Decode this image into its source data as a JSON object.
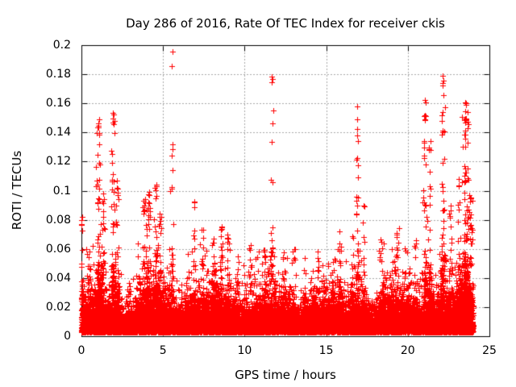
{
  "chart_data": {
    "type": "scatter",
    "title": "Day 286 of 2016, Rate Of TEC Index for receiver ckis",
    "xlabel": "GPS time / hours",
    "ylabel": "ROTI / TECUs",
    "xlim": [
      0,
      25
    ],
    "ylim": [
      0,
      0.2
    ],
    "grid": true,
    "legend": "none",
    "marker": "plus",
    "marker_size_px": 7,
    "marker_color": "#ff0000",
    "grid_color": "#a8a8a8",
    "axis_color": "#000000",
    "xticks": {
      "values": [
        0,
        5,
        10,
        15,
        20,
        25
      ],
      "labels": [
        "0",
        "5",
        "10",
        "15",
        "20",
        "25"
      ]
    },
    "yticks": {
      "values": [
        0,
        0.02,
        0.04,
        0.06,
        0.08,
        0.1,
        0.12,
        0.14,
        0.16,
        0.18,
        0.2
      ],
      "labels": [
        "0",
        "0.02",
        "0.04",
        "0.06",
        "0.08",
        "0.1",
        "0.12",
        "0.14",
        "0.16",
        "0.18",
        "0.2"
      ]
    },
    "data_time_range_hours": [
      0,
      24
    ],
    "baseline": {
      "n_points": 17000,
      "roti_floor": 0.002,
      "typical_roti_max": 0.03,
      "ragged_excursions_to": 0.06,
      "description": "continuous dense band of + markers across 0-24 h, solid below ~0.02, ragged tops to ~0.04-0.06"
    },
    "spike_clusters": [
      {
        "t_hours": 0.03,
        "peak_roti": 0.088,
        "n_points": 16,
        "sigma_hours": 0.03
      },
      {
        "t_hours": 0.35,
        "peak_roti": 0.062,
        "n_points": 14,
        "sigma_hours": 0.05
      },
      {
        "t_hours": 1.05,
        "peak_roti": 0.152,
        "n_points": 55,
        "sigma_hours": 0.09
      },
      {
        "t_hours": 1.35,
        "peak_roti": 0.1,
        "n_points": 25,
        "sigma_hours": 0.06
      },
      {
        "t_hours": 1.95,
        "peak_roti": 0.158,
        "n_points": 40,
        "sigma_hours": 0.07
      },
      {
        "t_hours": 2.2,
        "peak_roti": 0.112,
        "n_points": 22,
        "sigma_hours": 0.05
      },
      {
        "t_hours": 3.85,
        "peak_roti": 0.095,
        "n_points": 40,
        "sigma_hours": 0.1
      },
      {
        "t_hours": 4.15,
        "peak_roti": 0.1,
        "n_points": 30,
        "sigma_hours": 0.07
      },
      {
        "t_hours": 4.55,
        "peak_roti": 0.105,
        "n_points": 40,
        "sigma_hours": 0.09
      },
      {
        "t_hours": 4.8,
        "peak_roti": 0.088,
        "n_points": 25,
        "sigma_hours": 0.06
      },
      {
        "t_hours": 5.55,
        "peak_roti": 0.197,
        "n_points": 15,
        "sigma_hours": 0.05
      },
      {
        "t_hours": 6.9,
        "peak_roti": 0.093,
        "n_points": 22,
        "sigma_hours": 0.06
      },
      {
        "t_hours": 7.45,
        "peak_roti": 0.075,
        "n_points": 28,
        "sigma_hours": 0.08
      },
      {
        "t_hours": 8.1,
        "peak_roti": 0.07,
        "n_points": 30,
        "sigma_hours": 0.08
      },
      {
        "t_hours": 8.6,
        "peak_roti": 0.08,
        "n_points": 30,
        "sigma_hours": 0.07
      },
      {
        "t_hours": 8.95,
        "peak_roti": 0.072,
        "n_points": 22,
        "sigma_hours": 0.06
      },
      {
        "t_hours": 9.6,
        "peak_roti": 0.055,
        "n_points": 18,
        "sigma_hours": 0.07
      },
      {
        "t_hours": 10.35,
        "peak_roti": 0.065,
        "n_points": 20,
        "sigma_hours": 0.06
      },
      {
        "t_hours": 11.25,
        "peak_roti": 0.06,
        "n_points": 16,
        "sigma_hours": 0.06
      },
      {
        "t_hours": 11.7,
        "peak_roti": 0.191,
        "n_points": 16,
        "sigma_hours": 0.05
      },
      {
        "t_hours": 12.35,
        "peak_roti": 0.055,
        "n_points": 16,
        "sigma_hours": 0.06
      },
      {
        "t_hours": 13.05,
        "peak_roti": 0.063,
        "n_points": 14,
        "sigma_hours": 0.05
      },
      {
        "t_hours": 13.7,
        "peak_roti": 0.055,
        "n_points": 16,
        "sigma_hours": 0.06
      },
      {
        "t_hours": 14.45,
        "peak_roti": 0.06,
        "n_points": 18,
        "sigma_hours": 0.07
      },
      {
        "t_hours": 15.15,
        "peak_roti": 0.052,
        "n_points": 14,
        "sigma_hours": 0.06
      },
      {
        "t_hours": 15.85,
        "peak_roti": 0.065,
        "n_points": 20,
        "sigma_hours": 0.07
      },
      {
        "t_hours": 16.6,
        "peak_roti": 0.07,
        "n_points": 18,
        "sigma_hours": 0.06
      },
      {
        "t_hours": 16.9,
        "peak_roti": 0.158,
        "n_points": 28,
        "sigma_hours": 0.05
      },
      {
        "t_hours": 17.35,
        "peak_roti": 0.09,
        "n_points": 16,
        "sigma_hours": 0.05
      },
      {
        "t_hours": 18.35,
        "peak_roti": 0.068,
        "n_points": 18,
        "sigma_hours": 0.07
      },
      {
        "t_hours": 19.3,
        "peak_roti": 0.075,
        "n_points": 22,
        "sigma_hours": 0.07
      },
      {
        "t_hours": 19.85,
        "peak_roti": 0.062,
        "n_points": 16,
        "sigma_hours": 0.06
      },
      {
        "t_hours": 20.5,
        "peak_roti": 0.07,
        "n_points": 18,
        "sigma_hours": 0.06
      },
      {
        "t_hours": 21.05,
        "peak_roti": 0.163,
        "n_points": 38,
        "sigma_hours": 0.07
      },
      {
        "t_hours": 21.35,
        "peak_roti": 0.14,
        "n_points": 24,
        "sigma_hours": 0.06
      },
      {
        "t_hours": 22.15,
        "peak_roti": 0.181,
        "n_points": 42,
        "sigma_hours": 0.07
      },
      {
        "t_hours": 22.6,
        "peak_roti": 0.09,
        "n_points": 22,
        "sigma_hours": 0.06
      },
      {
        "t_hours": 23.1,
        "peak_roti": 0.11,
        "n_points": 26,
        "sigma_hours": 0.06
      },
      {
        "t_hours": 23.55,
        "peak_roti": 0.162,
        "n_points": 85,
        "sigma_hours": 0.1
      },
      {
        "t_hours": 23.85,
        "peak_roti": 0.1,
        "n_points": 40,
        "sigma_hours": 0.07
      }
    ]
  }
}
